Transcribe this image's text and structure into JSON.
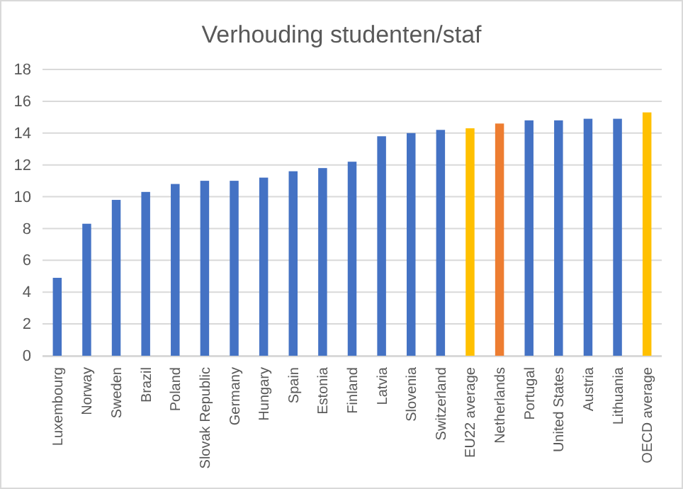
{
  "chart_data": {
    "type": "bar",
    "title": "Verhouding studenten/staf",
    "categories": [
      "Luxembourg",
      "Norway",
      "Sweden",
      "Brazil",
      "Poland",
      "Slovak Republic",
      "Germany",
      "Hungary",
      "Spain",
      "Estonia",
      "Finland",
      "Latvia",
      "Slovenia",
      "Switzerland",
      "EU22 average",
      "Netherlands",
      "Portugal",
      "United States",
      "Austria",
      "Lithuania",
      "OECD average"
    ],
    "values": [
      4.9,
      8.3,
      9.8,
      10.3,
      10.8,
      11.0,
      11.0,
      11.2,
      11.6,
      11.8,
      12.2,
      13.8,
      14.0,
      14.2,
      14.3,
      14.6,
      14.8,
      14.8,
      14.9,
      14.9,
      15.3
    ],
    "colors": [
      "#4472c4",
      "#4472c4",
      "#4472c4",
      "#4472c4",
      "#4472c4",
      "#4472c4",
      "#4472c4",
      "#4472c4",
      "#4472c4",
      "#4472c4",
      "#4472c4",
      "#4472c4",
      "#4472c4",
      "#4472c4",
      "#ffc000",
      "#ed7d31",
      "#4472c4",
      "#4472c4",
      "#4472c4",
      "#4472c4",
      "#ffc000"
    ],
    "ylim": [
      0,
      18
    ],
    "yticks": [
      0,
      2,
      4,
      6,
      8,
      10,
      12,
      14,
      16,
      18
    ],
    "grid": "y"
  }
}
